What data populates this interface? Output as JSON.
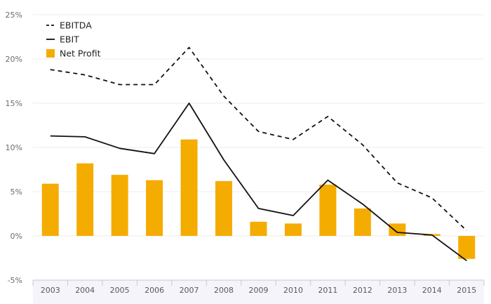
{
  "chart_data": {
    "type": "bar",
    "title": "",
    "xlabel": "",
    "ylabel": "",
    "categories": [
      "2003",
      "2004",
      "2005",
      "2006",
      "2007",
      "2008",
      "2009",
      "2010",
      "2011",
      "2012",
      "2013",
      "2014",
      "2015"
    ],
    "ylim": [
      -5,
      25
    ],
    "yticks": [
      -5,
      0,
      5,
      10,
      15,
      20,
      25
    ],
    "ytick_labels": [
      "-5%",
      "0%",
      "5%",
      "10%",
      "15%",
      "20%",
      "25%"
    ],
    "grid": true,
    "legend_position": "top-left",
    "series": [
      {
        "name": "EBITDA",
        "kind": "line",
        "style": "dashed",
        "color": "#111111",
        "values": [
          18.8,
          18.2,
          17.1,
          17.1,
          21.3,
          15.8,
          11.8,
          10.9,
          13.5,
          10.3,
          6.0,
          4.3,
          0.6
        ]
      },
      {
        "name": "EBIT",
        "kind": "line",
        "style": "solid",
        "color": "#111111",
        "values": [
          11.3,
          11.2,
          9.9,
          9.3,
          15.0,
          8.6,
          3.1,
          2.3,
          6.3,
          3.6,
          0.4,
          0.1,
          -2.8
        ]
      },
      {
        "name": "Net Profit",
        "kind": "bar",
        "color": "#f5ac00",
        "values": [
          5.9,
          8.2,
          6.9,
          6.3,
          10.9,
          6.2,
          1.6,
          1.4,
          5.8,
          3.1,
          1.4,
          0.2,
          -2.6
        ]
      }
    ]
  }
}
